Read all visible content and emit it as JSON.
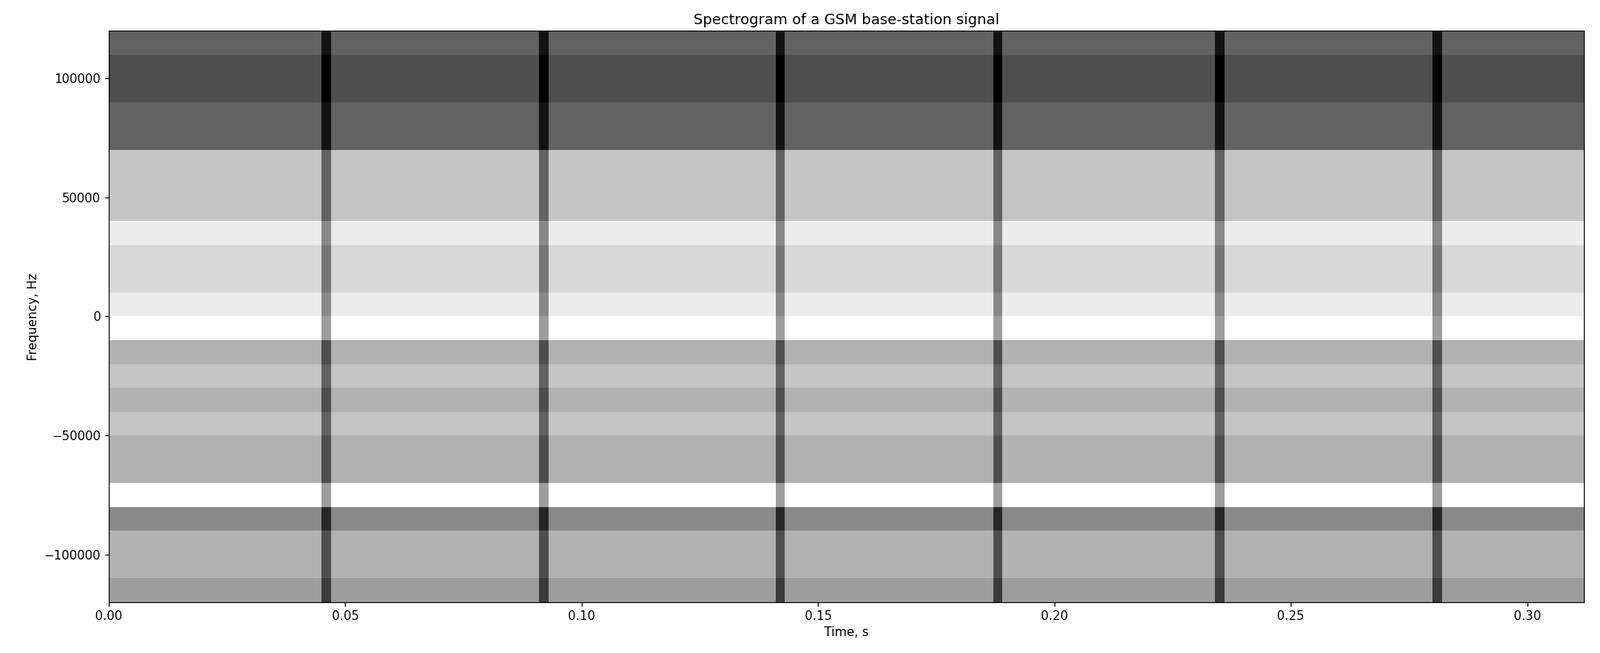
{
  "chart_data": {
    "type": "heatmap",
    "title": "Spectrogram of a GSM base-station signal",
    "x_label": "Time, s",
    "y_label": "Frequency, Hz",
    "color": "gray",
    "x_edges": [
      0.0,
      0.045,
      0.047,
      0.091,
      0.093,
      0.141,
      0.143,
      0.187,
      0.189,
      0.234,
      0.236,
      0.28,
      0.282,
      0.312
    ],
    "y_edges": [
      -120000,
      -110000,
      -100000,
      -90000,
      -80000,
      -70000,
      -60000,
      -50000,
      -40000,
      -30000,
      -20000,
      -10000,
      0,
      10000,
      20000,
      30000,
      40000,
      50000,
      60000,
      70000,
      80000,
      90000,
      100000,
      110000,
      120000
    ],
    "cells": [
      [
        0.45,
        0.2,
        0.45,
        0.2,
        0.45,
        0.2,
        0.45,
        0.2,
        0.45,
        0.2,
        0.45,
        0.2,
        0.45
      ],
      [
        0.5,
        0.25,
        0.5,
        0.25,
        0.5,
        0.25,
        0.5,
        0.25,
        0.5,
        0.25,
        0.5,
        0.25,
        0.5
      ],
      [
        0.5,
        0.25,
        0.5,
        0.25,
        0.5,
        0.25,
        0.5,
        0.25,
        0.5,
        0.25,
        0.5,
        0.25,
        0.5
      ],
      [
        0.4,
        0.15,
        0.4,
        0.15,
        0.4,
        0.15,
        0.4,
        0.15,
        0.4,
        0.15,
        0.4,
        0.15,
        0.4
      ],
      [
        0.7,
        0.45,
        0.7,
        0.45,
        0.7,
        0.45,
        0.7,
        0.45,
        0.7,
        0.45,
        0.7,
        0.45,
        0.7
      ],
      [
        0.5,
        0.25,
        0.5,
        0.25,
        0.5,
        0.25,
        0.5,
        0.25,
        0.5,
        0.25,
        0.5,
        0.25,
        0.5
      ],
      [
        0.5,
        0.25,
        0.5,
        0.25,
        0.5,
        0.25,
        0.5,
        0.25,
        0.5,
        0.25,
        0.5,
        0.25,
        0.5
      ],
      [
        0.55,
        0.3,
        0.55,
        0.3,
        0.55,
        0.3,
        0.55,
        0.3,
        0.55,
        0.3,
        0.55,
        0.3,
        0.55
      ],
      [
        0.5,
        0.25,
        0.5,
        0.25,
        0.5,
        0.25,
        0.5,
        0.25,
        0.5,
        0.25,
        0.5,
        0.25,
        0.5
      ],
      [
        0.55,
        0.3,
        0.55,
        0.3,
        0.55,
        0.3,
        0.55,
        0.3,
        0.55,
        0.3,
        0.55,
        0.3,
        0.55
      ],
      [
        0.5,
        0.25,
        0.5,
        0.25,
        0.5,
        0.25,
        0.5,
        0.25,
        0.5,
        0.25,
        0.5,
        0.25,
        0.5
      ],
      [
        0.7,
        0.45,
        0.7,
        0.45,
        0.7,
        0.45,
        0.7,
        0.45,
        0.7,
        0.45,
        0.7,
        0.45,
        0.7
      ],
      [
        0.65,
        0.4,
        0.65,
        0.4,
        0.65,
        0.4,
        0.65,
        0.4,
        0.65,
        0.4,
        0.65,
        0.4,
        0.65
      ],
      [
        0.6,
        0.35,
        0.6,
        0.35,
        0.6,
        0.35,
        0.6,
        0.35,
        0.6,
        0.35,
        0.6,
        0.35,
        0.6
      ],
      [
        0.6,
        0.35,
        0.6,
        0.35,
        0.6,
        0.35,
        0.6,
        0.35,
        0.6,
        0.35,
        0.6,
        0.35,
        0.6
      ],
      [
        0.65,
        0.4,
        0.65,
        0.4,
        0.65,
        0.4,
        0.65,
        0.4,
        0.65,
        0.4,
        0.65,
        0.4,
        0.65
      ],
      [
        0.55,
        0.3,
        0.55,
        0.3,
        0.55,
        0.3,
        0.55,
        0.3,
        0.55,
        0.3,
        0.55,
        0.3,
        0.55
      ],
      [
        0.55,
        0.3,
        0.55,
        0.3,
        0.55,
        0.3,
        0.55,
        0.3,
        0.55,
        0.3,
        0.55,
        0.3,
        0.55
      ],
      [
        0.55,
        0.3,
        0.55,
        0.3,
        0.55,
        0.3,
        0.55,
        0.3,
        0.55,
        0.3,
        0.55,
        0.3,
        0.55
      ],
      [
        0.3,
        0.1,
        0.3,
        0.1,
        0.3,
        0.1,
        0.3,
        0.1,
        0.3,
        0.1,
        0.3,
        0.1,
        0.3
      ],
      [
        0.3,
        0.1,
        0.3,
        0.1,
        0.3,
        0.1,
        0.3,
        0.1,
        0.3,
        0.1,
        0.3,
        0.1,
        0.3
      ],
      [
        0.25,
        0.05,
        0.25,
        0.05,
        0.25,
        0.05,
        0.25,
        0.05,
        0.25,
        0.05,
        0.25,
        0.05,
        0.25
      ],
      [
        0.25,
        0.05,
        0.25,
        0.05,
        0.25,
        0.05,
        0.25,
        0.05,
        0.25,
        0.05,
        0.25,
        0.05,
        0.25
      ],
      [
        0.3,
        0.1,
        0.3,
        0.1,
        0.3,
        0.1,
        0.3,
        0.1,
        0.3,
        0.1,
        0.3,
        0.1,
        0.3
      ]
    ],
    "xlim": [
      0.0,
      0.312
    ],
    "xticks": [
      {
        "value": 0.0,
        "label": "0.00"
      },
      0.05,
      {
        "value": 0.1,
        "label": "0.10"
      },
      0.15,
      {
        "value": 0.2,
        "label": "0.20"
      },
      0.25,
      {
        "value": 0.3,
        "label": "0.30"
      }
    ],
    "ylim": [
      -120000,
      120000
    ],
    "yticks": [
      {
        "value": -100000,
        "label": "−100000"
      },
      {
        "value": -50000,
        "label": "−50000"
      },
      0,
      50000,
      100000
    ]
  }
}
